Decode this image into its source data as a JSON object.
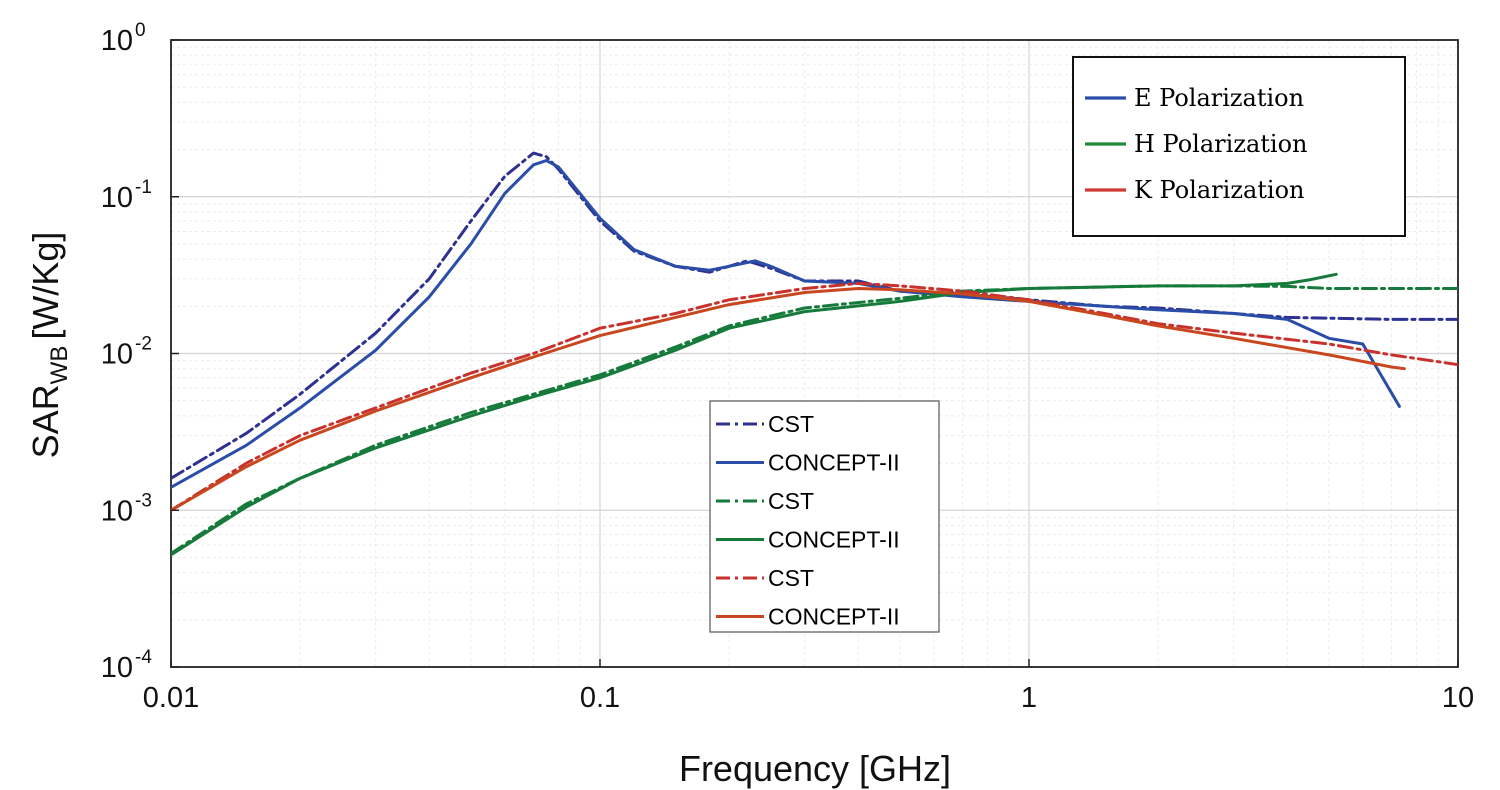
{
  "chart_data": {
    "type": "line",
    "xlabel": "Frequency [GHz]",
    "ylabel": {
      "main": "SAR",
      "subscript": "WB",
      "unit": "[W/Kg]"
    },
    "x_scale": "log",
    "y_scale": "log",
    "xlim": [
      0.01,
      10
    ],
    "ylim": [
      0.0001,
      1
    ],
    "x_ticks": [
      "0.01",
      "0.1",
      "1",
      "10"
    ],
    "y_ticks": [
      {
        "base": "10",
        "exp": "0"
      },
      {
        "base": "10",
        "exp": "-1"
      },
      {
        "base": "10",
        "exp": "-2"
      },
      {
        "base": "10",
        "exp": "-3"
      },
      {
        "base": "10",
        "exp": "-4"
      }
    ],
    "grid": true,
    "legend_polarization": {
      "position": "top-right",
      "entries": [
        {
          "label": "E Polarization",
          "color": "#2a4da8"
        },
        {
          "label": "H Polarization",
          "color": "#1f8a3a"
        },
        {
          "label": "K Polarization",
          "color": "#d03a32"
        }
      ]
    },
    "legend_method": {
      "position": "center",
      "entries": [
        {
          "label": "CST",
          "color": "#2e3192",
          "dash": true
        },
        {
          "label": "CONCEPT-II",
          "color": "#2a4da8",
          "dash": false
        },
        {
          "label": "CST",
          "color": "#157a3a",
          "dash": true
        },
        {
          "label": "CONCEPT-II",
          "color": "#157a3a",
          "dash": false
        },
        {
          "label": "CST",
          "color": "#c8312c",
          "dash": true
        },
        {
          "label": "CONCEPT-II",
          "color": "#c9471f",
          "dash": false
        }
      ]
    },
    "series": [
      {
        "polarization": "E",
        "method": "CST",
        "color": "#2e3192",
        "dash": true,
        "points": [
          [
            0.01,
            0.0016
          ],
          [
            0.015,
            0.0031
          ],
          [
            0.02,
            0.0055
          ],
          [
            0.03,
            0.0135
          ],
          [
            0.04,
            0.03
          ],
          [
            0.05,
            0.07
          ],
          [
            0.06,
            0.135
          ],
          [
            0.07,
            0.19
          ],
          [
            0.075,
            0.18
          ],
          [
            0.08,
            0.15
          ],
          [
            0.1,
            0.07
          ],
          [
            0.12,
            0.045
          ],
          [
            0.15,
            0.036
          ],
          [
            0.18,
            0.033
          ],
          [
            0.2,
            0.036
          ],
          [
            0.22,
            0.039
          ],
          [
            0.25,
            0.035
          ],
          [
            0.3,
            0.029
          ],
          [
            0.4,
            0.029
          ],
          [
            0.5,
            0.025
          ],
          [
            0.7,
            0.024
          ],
          [
            1,
            0.022
          ],
          [
            1.5,
            0.02
          ],
          [
            2,
            0.0195
          ],
          [
            3,
            0.018
          ],
          [
            4,
            0.017
          ],
          [
            5,
            0.0168
          ],
          [
            7,
            0.0165
          ],
          [
            10,
            0.0165
          ]
        ]
      },
      {
        "polarization": "E",
        "method": "CONCEPT-II",
        "color": "#2a4da8",
        "dash": false,
        "points": [
          [
            0.01,
            0.0014
          ],
          [
            0.015,
            0.0026
          ],
          [
            0.02,
            0.0045
          ],
          [
            0.03,
            0.0105
          ],
          [
            0.04,
            0.023
          ],
          [
            0.05,
            0.05
          ],
          [
            0.06,
            0.105
          ],
          [
            0.07,
            0.16
          ],
          [
            0.075,
            0.17
          ],
          [
            0.08,
            0.155
          ],
          [
            0.1,
            0.073
          ],
          [
            0.12,
            0.046
          ],
          [
            0.15,
            0.036
          ],
          [
            0.18,
            0.034
          ],
          [
            0.2,
            0.036
          ],
          [
            0.23,
            0.039
          ],
          [
            0.25,
            0.036
          ],
          [
            0.3,
            0.029
          ],
          [
            0.4,
            0.028
          ],
          [
            0.5,
            0.025
          ],
          [
            0.7,
            0.023
          ],
          [
            1,
            0.0215
          ],
          [
            1.5,
            0.02
          ],
          [
            2,
            0.019
          ],
          [
            3,
            0.018
          ],
          [
            4,
            0.0165
          ],
          [
            5,
            0.0125
          ],
          [
            6,
            0.0115
          ],
          [
            7.3,
            0.0046
          ]
        ]
      },
      {
        "polarization": "H",
        "method": "CST",
        "color": "#157a3a",
        "dash": true,
        "points": [
          [
            0.01,
            0.00053
          ],
          [
            0.015,
            0.0011
          ],
          [
            0.02,
            0.0016
          ],
          [
            0.03,
            0.0026
          ],
          [
            0.05,
            0.0042
          ],
          [
            0.07,
            0.0055
          ],
          [
            0.1,
            0.0073
          ],
          [
            0.15,
            0.011
          ],
          [
            0.2,
            0.015
          ],
          [
            0.3,
            0.0195
          ],
          [
            0.5,
            0.0225
          ],
          [
            0.7,
            0.025
          ],
          [
            1,
            0.026
          ],
          [
            2,
            0.027
          ],
          [
            3,
            0.027
          ],
          [
            4,
            0.0268
          ],
          [
            5,
            0.026
          ],
          [
            7,
            0.026
          ],
          [
            10,
            0.026
          ]
        ]
      },
      {
        "polarization": "H",
        "method": "CONCEPT-II",
        "color": "#157a3a",
        "dash": false,
        "points": [
          [
            0.01,
            0.00052
          ],
          [
            0.015,
            0.00105
          ],
          [
            0.02,
            0.0016
          ],
          [
            0.03,
            0.0025
          ],
          [
            0.05,
            0.004
          ],
          [
            0.07,
            0.0053
          ],
          [
            0.1,
            0.007
          ],
          [
            0.15,
            0.0105
          ],
          [
            0.2,
            0.0145
          ],
          [
            0.3,
            0.0185
          ],
          [
            0.5,
            0.0215
          ],
          [
            0.7,
            0.0245
          ],
          [
            1,
            0.026
          ],
          [
            2,
            0.027
          ],
          [
            3,
            0.027
          ],
          [
            4,
            0.028
          ],
          [
            4.5,
            0.0295
          ],
          [
            5.2,
            0.032
          ]
        ]
      },
      {
        "polarization": "K",
        "method": "CST",
        "color": "#c8312c",
        "dash": true,
        "points": [
          [
            0.01,
            0.001
          ],
          [
            0.015,
            0.002
          ],
          [
            0.02,
            0.003
          ],
          [
            0.03,
            0.0045
          ],
          [
            0.05,
            0.0075
          ],
          [
            0.07,
            0.01
          ],
          [
            0.1,
            0.0145
          ],
          [
            0.15,
            0.018
          ],
          [
            0.2,
            0.022
          ],
          [
            0.3,
            0.026
          ],
          [
            0.4,
            0.028
          ],
          [
            0.5,
            0.027
          ],
          [
            0.7,
            0.025
          ],
          [
            1,
            0.022
          ],
          [
            1.5,
            0.018
          ],
          [
            2,
            0.0155
          ],
          [
            3,
            0.0135
          ],
          [
            5,
            0.0115
          ],
          [
            7,
            0.0098
          ],
          [
            10,
            0.0085
          ]
        ]
      },
      {
        "polarization": "K",
        "method": "CONCEPT-II",
        "color": "#c9471f",
        "dash": false,
        "points": [
          [
            0.01,
            0.001
          ],
          [
            0.015,
            0.0019
          ],
          [
            0.02,
            0.0028
          ],
          [
            0.03,
            0.0043
          ],
          [
            0.05,
            0.007
          ],
          [
            0.07,
            0.0095
          ],
          [
            0.1,
            0.013
          ],
          [
            0.15,
            0.017
          ],
          [
            0.2,
            0.0205
          ],
          [
            0.3,
            0.0245
          ],
          [
            0.4,
            0.026
          ],
          [
            0.5,
            0.0255
          ],
          [
            0.7,
            0.024
          ],
          [
            1,
            0.0215
          ],
          [
            1.5,
            0.0175
          ],
          [
            2,
            0.015
          ],
          [
            3,
            0.0125
          ],
          [
            5,
            0.0098
          ],
          [
            7,
            0.0082
          ],
          [
            7.5,
            0.008
          ]
        ]
      }
    ]
  }
}
